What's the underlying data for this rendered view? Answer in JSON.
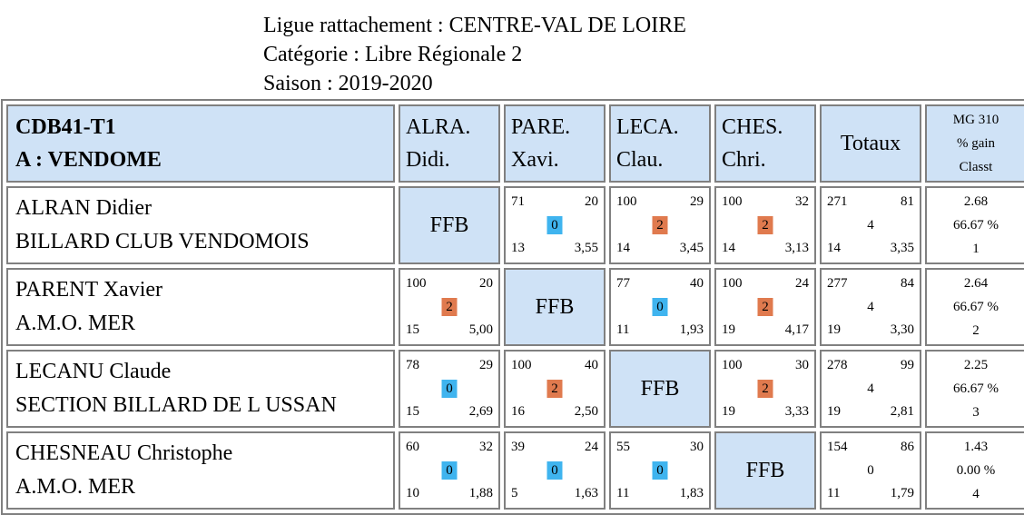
{
  "header": {
    "line1": "Ligue rattachement : CENTRE-VAL DE LOIRE",
    "line2": "Catégorie : Libre Régionale 2",
    "line3": "Saison : 2019-2020"
  },
  "table": {
    "team_code": "CDB41-T1",
    "team_name": "A : VENDOME",
    "opponents": [
      {
        "l1": "ALRA.",
        "l2": "Didi."
      },
      {
        "l1": "PARE.",
        "l2": "Xavi."
      },
      {
        "l1": "LECA.",
        "l2": "Clau."
      },
      {
        "l1": "CHES.",
        "l2": "Chri."
      }
    ],
    "totaux_label": "Totaux",
    "mg_header": {
      "l1": "MG 310",
      "l2": "% gain",
      "l3": "Classt"
    },
    "ffb_label": "FFB",
    "rows": [
      {
        "name": "ALRAN Didier",
        "club": "BILLARD CLUB VENDOMOIS",
        "cells": [
          null,
          {
            "tl": "71",
            "tr": "20",
            "pts": "0",
            "bl": "13",
            "br": "3,55"
          },
          {
            "tl": "100",
            "tr": "29",
            "pts": "2",
            "bl": "14",
            "br": "3,45"
          },
          {
            "tl": "100",
            "tr": "32",
            "pts": "2",
            "bl": "14",
            "br": "3,13"
          }
        ],
        "total": {
          "tl": "271",
          "tr": "81",
          "pts": "4",
          "bl": "14",
          "br": "3,35"
        },
        "mg": {
          "l1": "2.68",
          "l2": "66.67 %",
          "l3": "1"
        }
      },
      {
        "name": "PARENT Xavier",
        "club": "A.M.O. MER",
        "cells": [
          {
            "tl": "100",
            "tr": "20",
            "pts": "2",
            "bl": "15",
            "br": "5,00"
          },
          null,
          {
            "tl": "77",
            "tr": "40",
            "pts": "0",
            "bl": "11",
            "br": "1,93"
          },
          {
            "tl": "100",
            "tr": "24",
            "pts": "2",
            "bl": "19",
            "br": "4,17"
          }
        ],
        "total": {
          "tl": "277",
          "tr": "84",
          "pts": "4",
          "bl": "19",
          "br": "3,30"
        },
        "mg": {
          "l1": "2.64",
          "l2": "66.67 %",
          "l3": "2"
        }
      },
      {
        "name": "LECANU Claude",
        "club": "SECTION BILLARD DE L USSAN",
        "cells": [
          {
            "tl": "78",
            "tr": "29",
            "pts": "0",
            "bl": "15",
            "br": "2,69"
          },
          {
            "tl": "100",
            "tr": "40",
            "pts": "2",
            "bl": "16",
            "br": "2,50"
          },
          null,
          {
            "tl": "100",
            "tr": "30",
            "pts": "2",
            "bl": "19",
            "br": "3,33"
          }
        ],
        "total": {
          "tl": "278",
          "tr": "99",
          "pts": "4",
          "bl": "19",
          "br": "2,81"
        },
        "mg": {
          "l1": "2.25",
          "l2": "66.67 %",
          "l3": "3"
        }
      },
      {
        "name": "CHESNEAU Christophe",
        "club": "A.M.O. MER",
        "cells": [
          {
            "tl": "60",
            "tr": "32",
            "pts": "0",
            "bl": "10",
            "br": "1,88"
          },
          {
            "tl": "39",
            "tr": "24",
            "pts": "0",
            "bl": "5",
            "br": "1,63"
          },
          {
            "tl": "55",
            "tr": "30",
            "pts": "0",
            "bl": "11",
            "br": "1,83"
          },
          null
        ],
        "total": {
          "tl": "154",
          "tr": "86",
          "pts": "0",
          "bl": "11",
          "br": "1,79"
        },
        "mg": {
          "l1": "1.43",
          "l2": "0.00 %",
          "l3": "4"
        }
      }
    ]
  },
  "colors": {
    "header_bg": "#cfe2f6",
    "win_badge": "#e07a4e",
    "loss_badge": "#3fb4ef",
    "border": "#808080"
  }
}
